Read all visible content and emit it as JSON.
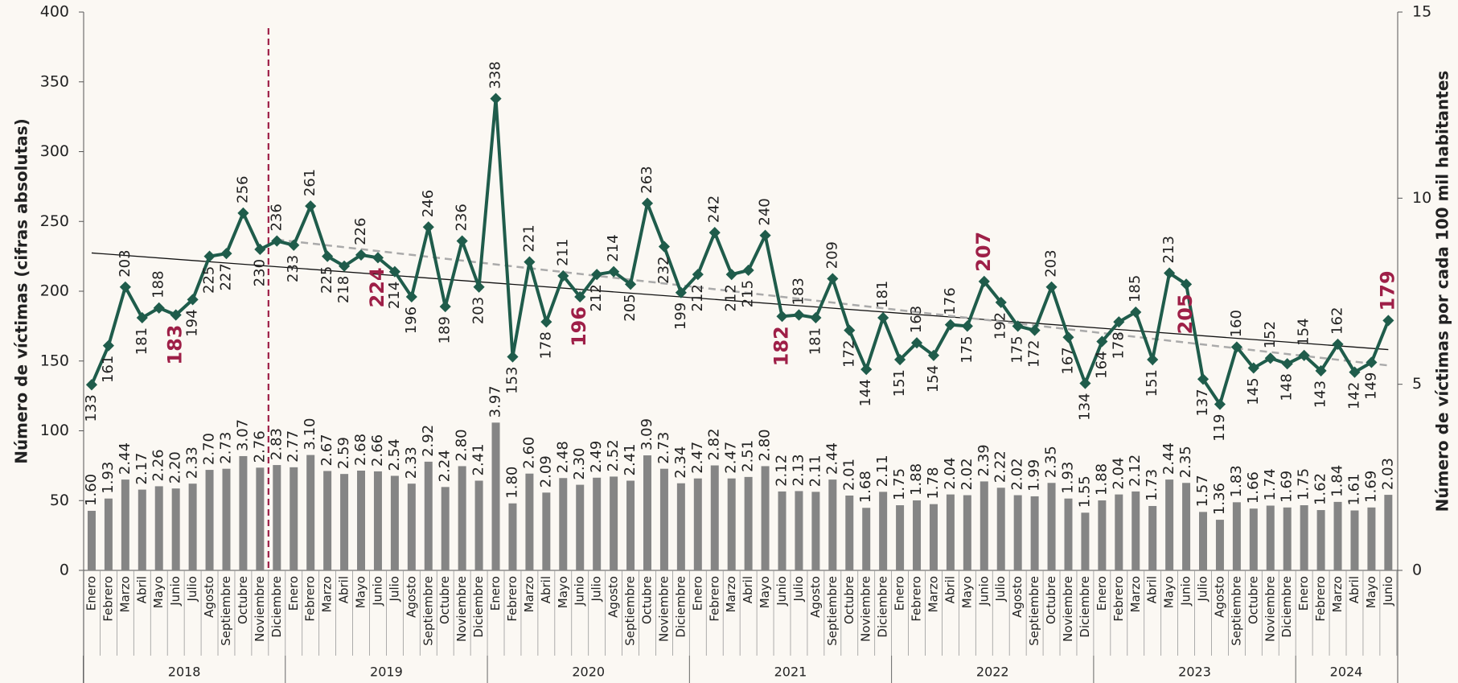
{
  "chart_data": {
    "type": "combo",
    "ylabel": "Número de víctimas (cifras absolutas)",
    "y2label": "Número de víctimas por cada 100 mil habitantes",
    "ylim": [
      0,
      400
    ],
    "yticks": [
      0,
      50,
      100,
      150,
      200,
      250,
      300,
      350,
      400
    ],
    "y2lim": [
      0,
      15
    ],
    "y2ticks": [
      0,
      5,
      10,
      15
    ],
    "highlight_color": "#9e1f47",
    "categories": [
      "Enero",
      "Febrero",
      "Marzo",
      "Abril",
      "Mayo",
      "Junio",
      "Julio",
      "Agosto",
      "Septiembre",
      "Octubre",
      "Noviembre",
      "Diciembre",
      "Enero",
      "Febrero",
      "Marzo",
      "Abril",
      "Mayo",
      "Junio",
      "Julio",
      "Agosto",
      "Septiembre",
      "Octubre",
      "Noviembre",
      "Diciembre",
      "Enero",
      "Febrero",
      "Marzo",
      "Abril",
      "Mayo",
      "Junio",
      "Julio",
      "Agosto",
      "Septiembre",
      "Octubre",
      "Noviembre",
      "Diciembre",
      "Enero",
      "Febrero",
      "Marzo",
      "Abril",
      "Mayo",
      "Junio",
      "Julio",
      "Agosto",
      "Septiembre",
      "Octubre",
      "Noviembre",
      "Diciembre",
      "Enero",
      "Febrero",
      "Marzo",
      "Abril",
      "Mayo",
      "Junio",
      "Julio",
      "Agosto",
      "Septiembre",
      "Octubre",
      "Noviembre",
      "Diciembre",
      "Enero",
      "Febrero",
      "Marzo",
      "Abril",
      "Mayo",
      "Junio",
      "Julio",
      "Agosto",
      "Septiembre",
      "Octubre",
      "Noviembre",
      "Diciembre",
      "Enero",
      "Febrero",
      "Marzo",
      "Abril",
      "Mayo",
      "Junio"
    ],
    "years": [
      "2018",
      "2019",
      "2020",
      "2021",
      "2022",
      "2023",
      "2024"
    ],
    "series": [
      {
        "type": "bar",
        "axis": "y2",
        "color": "#858585",
        "values": [
          1.6,
          1.93,
          2.44,
          2.17,
          2.26,
          2.2,
          2.33,
          2.7,
          2.73,
          3.07,
          2.76,
          2.83,
          2.77,
          3.1,
          2.67,
          2.59,
          2.68,
          2.66,
          2.54,
          2.33,
          2.92,
          2.24,
          2.8,
          2.41,
          3.97,
          1.8,
          2.6,
          2.09,
          2.48,
          2.3,
          2.49,
          2.52,
          2.41,
          3.09,
          2.73,
          2.34,
          2.47,
          2.82,
          2.47,
          2.51,
          2.8,
          2.12,
          2.13,
          2.11,
          2.44,
          2.01,
          1.68,
          2.11,
          1.75,
          1.88,
          1.78,
          2.04,
          2.02,
          2.39,
          2.22,
          2.02,
          1.99,
          2.35,
          1.93,
          1.55,
          1.88,
          2.04,
          2.12,
          1.73,
          2.44,
          2.35,
          1.57,
          1.36,
          1.83,
          1.66,
          1.74,
          1.69,
          1.75,
          1.62,
          1.84,
          1.61,
          1.69,
          2.03
        ],
        "value_labels": [
          "1.60",
          "1.93",
          "2.44",
          "2.17",
          "2.26",
          "2.20",
          "2.33",
          "2.70",
          "2.73",
          "3.07",
          "2.76",
          "2.83",
          "2.77",
          "3.10",
          "2.67",
          "2.59",
          "2.68",
          "2.66",
          "2.54",
          "2.33",
          "2.92",
          "2.24",
          "2.80",
          "2.41",
          "3.97",
          "1.80",
          "2.60",
          "2.09",
          "2.48",
          "2.30",
          "2.49",
          "2.52",
          "2.41",
          "3.09",
          "2.73",
          "2.34",
          "2.47",
          "2.82",
          "2.47",
          "2.51",
          "2.80",
          "2.12",
          "2.13",
          "2.11",
          "2.44",
          "2.01",
          "1.68",
          "2.11",
          "1.75",
          "1.88",
          "1.78",
          "2.04",
          "2.02",
          "2.39",
          "2.22",
          "2.02",
          "1.99",
          "2.35",
          "1.93",
          "1.55",
          "1.88",
          "2.04",
          "2.12",
          "1.73",
          "2.44",
          "2.35",
          "1.57",
          "1.36",
          "1.83",
          "1.66",
          "1.74",
          "1.69",
          "1.75",
          "1.62",
          "1.84",
          "1.61",
          "1.69",
          "2.03"
        ]
      },
      {
        "type": "line",
        "color": "#1f5c4b",
        "values": [
          133,
          161,
          203,
          181,
          188,
          183,
          194,
          225,
          227,
          256,
          230,
          236,
          233,
          261,
          225,
          218,
          226,
          224,
          214,
          196,
          246,
          189,
          236,
          203,
          338,
          153,
          221,
          178,
          211,
          196,
          212,
          214,
          205,
          263,
          232,
          199,
          212,
          242,
          212,
          215,
          240,
          182,
          183,
          181,
          209,
          172,
          144,
          181,
          151,
          163,
          154,
          176,
          175,
          207,
          192,
          175,
          172,
          203,
          167,
          134,
          164,
          178,
          185,
          151,
          213,
          205,
          137,
          119,
          160,
          145,
          152,
          148,
          154,
          143,
          162,
          142,
          149,
          179
        ]
      }
    ]
  }
}
